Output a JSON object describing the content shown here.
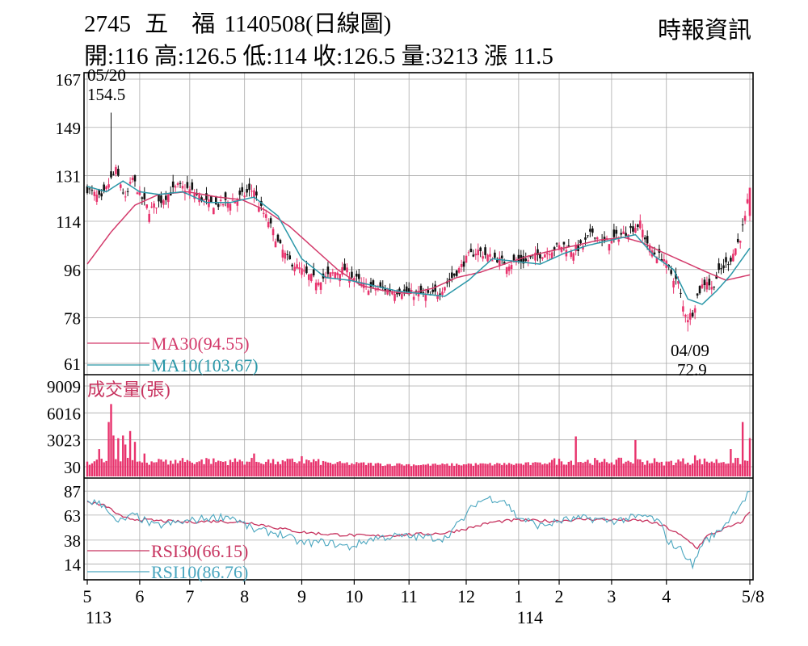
{
  "header": {
    "code": "2745",
    "name": "五　福",
    "date": "1140508(日線圖)",
    "source": "時報資訊",
    "quote": {
      "open_label": "開:",
      "open": "116",
      "high_label": "高:",
      "high": "126.5",
      "low_label": "低:",
      "low": "114",
      "close_label": "收:",
      "close": "126.5",
      "volume_label": "量:",
      "volume": "3213",
      "change_label": "漲",
      "change": "11.5"
    }
  },
  "colors": {
    "up": "#e8336d",
    "down": "#111111",
    "ma30": "#d33a6b",
    "ma10": "#2a97a8",
    "volume": "#e8336d",
    "rsi30": "#c7335f",
    "rsi10": "#4aa6bf",
    "grid": "#aaaaaa"
  },
  "chart_data": [
    {
      "type": "candlestick",
      "panel": "price",
      "y_ticks": [
        "167",
        "149",
        "131",
        "114",
        "96",
        "78",
        "61"
      ],
      "ylim": [
        61,
        167
      ],
      "annotations": [
        {
          "date": "05/20",
          "value": "154.5",
          "kind": "high"
        },
        {
          "date": "04/09",
          "value": "72.9",
          "kind": "low"
        }
      ],
      "legend": [
        {
          "label": "MA30(94.55)",
          "color": "#d33a6b"
        },
        {
          "label": "MA10(103.67)",
          "color": "#2a97a8"
        }
      ],
      "x_ticks": [
        "5",
        "6",
        "7",
        "8",
        "9",
        "10",
        "11",
        "12",
        "1",
        "2",
        "3",
        "4",
        "5/8"
      ],
      "x_year_labels": [
        {
          "label": "113",
          "at": "5"
        },
        {
          "label": "114",
          "at": "1"
        }
      ],
      "ma30_anchors": [
        [
          0,
          98
        ],
        [
          10,
          110
        ],
        [
          20,
          120
        ],
        [
          30,
          124
        ],
        [
          42,
          125
        ],
        [
          55,
          123
        ],
        [
          65,
          122
        ],
        [
          75,
          118
        ],
        [
          85,
          112
        ],
        [
          95,
          104
        ],
        [
          105,
          96
        ],
        [
          115,
          90
        ],
        [
          125,
          88
        ],
        [
          135,
          87
        ],
        [
          145,
          89
        ],
        [
          155,
          93
        ],
        [
          165,
          95
        ],
        [
          175,
          98
        ],
        [
          185,
          101
        ],
        [
          200,
          104
        ],
        [
          215,
          107
        ],
        [
          225,
          108
        ],
        [
          233,
          106
        ],
        [
          240,
          103
        ],
        [
          250,
          99
        ],
        [
          260,
          95
        ],
        [
          268,
          92
        ],
        [
          278,
          94
        ]
      ],
      "ma10_anchors": [
        [
          0,
          127
        ],
        [
          8,
          125
        ],
        [
          15,
          129
        ],
        [
          22,
          125
        ],
        [
          30,
          124
        ],
        [
          40,
          125
        ],
        [
          50,
          121
        ],
        [
          60,
          121
        ],
        [
          70,
          123
        ],
        [
          80,
          116
        ],
        [
          90,
          100
        ],
        [
          100,
          93
        ],
        [
          110,
          92
        ],
        [
          120,
          90
        ],
        [
          130,
          88
        ],
        [
          140,
          87
        ],
        [
          150,
          86
        ],
        [
          160,
          92
        ],
        [
          170,
          100
        ],
        [
          180,
          99
        ],
        [
          190,
          98
        ],
        [
          200,
          102
        ],
        [
          210,
          105
        ],
        [
          220,
          107
        ],
        [
          230,
          109
        ],
        [
          238,
          101
        ],
        [
          246,
          96
        ],
        [
          252,
          85
        ],
        [
          258,
          83
        ],
        [
          264,
          88
        ],
        [
          270,
          94
        ],
        [
          278,
          104
        ]
      ],
      "close_anchors": [
        [
          0,
          126
        ],
        [
          3,
          124
        ],
        [
          6,
          122
        ],
        [
          9,
          128
        ],
        [
          12,
          133
        ],
        [
          14,
          128
        ],
        [
          16,
          122
        ],
        [
          19,
          130
        ],
        [
          22,
          124
        ],
        [
          26,
          118
        ],
        [
          30,
          121
        ],
        [
          34,
          124
        ],
        [
          38,
          127
        ],
        [
          42,
          126
        ],
        [
          46,
          124
        ],
        [
          50,
          121
        ],
        [
          54,
          120
        ],
        [
          58,
          121
        ],
        [
          62,
          122
        ],
        [
          66,
          124
        ],
        [
          70,
          126
        ],
        [
          72,
          120
        ],
        [
          76,
          114
        ],
        [
          80,
          106
        ],
        [
          84,
          100
        ],
        [
          88,
          97
        ],
        [
          92,
          94
        ],
        [
          96,
          92
        ],
        [
          100,
          93
        ],
        [
          104,
          95
        ],
        [
          108,
          96
        ],
        [
          112,
          93
        ],
        [
          116,
          90
        ],
        [
          120,
          89
        ],
        [
          124,
          89
        ],
        [
          128,
          88
        ],
        [
          132,
          88
        ],
        [
          136,
          87
        ],
        [
          140,
          87
        ],
        [
          144,
          86
        ],
        [
          148,
          88
        ],
        [
          152,
          92
        ],
        [
          156,
          96
        ],
        [
          160,
          101
        ],
        [
          164,
          103
        ],
        [
          168,
          101
        ],
        [
          172,
          100
        ],
        [
          176,
          98
        ],
        [
          180,
          99
        ],
        [
          184,
          99
        ],
        [
          188,
          101
        ],
        [
          192,
          102
        ],
        [
          196,
          104
        ],
        [
          200,
          105
        ],
        [
          204,
          103
        ],
        [
          208,
          105
        ],
        [
          212,
          110
        ],
        [
          216,
          106
        ],
        [
          220,
          107
        ],
        [
          224,
          109
        ],
        [
          228,
          111
        ],
        [
          232,
          113
        ],
        [
          234,
          108
        ],
        [
          236,
          104
        ],
        [
          238,
          102
        ],
        [
          240,
          101
        ],
        [
          242,
          100
        ],
        [
          244,
          96
        ],
        [
          246,
          93
        ],
        [
          248,
          91
        ],
        [
          250,
          82
        ],
        [
          252,
          78
        ],
        [
          254,
          80
        ],
        [
          256,
          86
        ],
        [
          258,
          90
        ],
        [
          260,
          92
        ],
        [
          262,
          89
        ],
        [
          264,
          93
        ],
        [
          266,
          96
        ],
        [
          268,
          98
        ],
        [
          270,
          100
        ],
        [
          272,
          104
        ],
        [
          274,
          108
        ],
        [
          276,
          115
        ],
        [
          278,
          126.5
        ]
      ],
      "close": 126.5
    },
    {
      "type": "bar",
      "panel": "volume",
      "title": "成交量(張)",
      "y_ticks": [
        "9009",
        "6016",
        "3023",
        "30"
      ],
      "ylim": [
        30,
        9009
      ],
      "peaks": [
        [
          0,
          600
        ],
        [
          5,
          2000
        ],
        [
          9,
          5000
        ],
        [
          10,
          7000
        ],
        [
          11,
          3500
        ],
        [
          13,
          3200
        ],
        [
          15,
          3500
        ],
        [
          16,
          2500
        ],
        [
          18,
          4000
        ],
        [
          20,
          2800
        ],
        [
          24,
          1500
        ],
        [
          30,
          900
        ],
        [
          35,
          700
        ],
        [
          40,
          1000
        ],
        [
          50,
          1000
        ],
        [
          60,
          800
        ],
        [
          70,
          1500
        ],
        [
          80,
          600
        ],
        [
          90,
          1200
        ],
        [
          100,
          600
        ],
        [
          115,
          500
        ],
        [
          130,
          400
        ],
        [
          145,
          350
        ],
        [
          160,
          400
        ],
        [
          175,
          450
        ],
        [
          190,
          500
        ],
        [
          205,
          3400
        ],
        [
          215,
          500
        ],
        [
          230,
          3000
        ],
        [
          240,
          500
        ],
        [
          255,
          1300
        ],
        [
          270,
          2000
        ],
        [
          275,
          5000
        ],
        [
          278,
          3213
        ]
      ]
    },
    {
      "type": "line",
      "panel": "rsi",
      "y_ticks": [
        "87",
        "63",
        "38",
        "14"
      ],
      "ylim": [
        8,
        92
      ],
      "legend": [
        {
          "label": "RSI30(66.15)",
          "color": "#c7335f"
        },
        {
          "label": "RSI10(86.76)",
          "color": "#4aa6bf"
        }
      ],
      "rsi30_anchors": [
        [
          0,
          76
        ],
        [
          8,
          72
        ],
        [
          15,
          60
        ],
        [
          25,
          58
        ],
        [
          40,
          56
        ],
        [
          55,
          57
        ],
        [
          70,
          55
        ],
        [
          80,
          50
        ],
        [
          90,
          46
        ],
        [
          100,
          44
        ],
        [
          110,
          43
        ],
        [
          120,
          42
        ],
        [
          130,
          43
        ],
        [
          140,
          44
        ],
        [
          150,
          45
        ],
        [
          160,
          50
        ],
        [
          170,
          56
        ],
        [
          180,
          58
        ],
        [
          195,
          57
        ],
        [
          210,
          59
        ],
        [
          225,
          58
        ],
        [
          235,
          57
        ],
        [
          242,
          52
        ],
        [
          248,
          44
        ],
        [
          253,
          36
        ],
        [
          256,
          30
        ],
        [
          260,
          42
        ],
        [
          268,
          50
        ],
        [
          274,
          55
        ],
        [
          278,
          66.15
        ]
      ],
      "rsi10_anchors": [
        [
          0,
          78
        ],
        [
          8,
          72
        ],
        [
          12,
          55
        ],
        [
          20,
          63
        ],
        [
          28,
          52
        ],
        [
          40,
          56
        ],
        [
          50,
          60
        ],
        [
          60,
          62
        ],
        [
          70,
          48
        ],
        [
          80,
          45
        ],
        [
          90,
          35
        ],
        [
          100,
          36
        ],
        [
          110,
          31
        ],
        [
          120,
          40
        ],
        [
          130,
          42
        ],
        [
          140,
          41
        ],
        [
          150,
          40
        ],
        [
          158,
          60
        ],
        [
          163,
          75
        ],
        [
          168,
          80
        ],
        [
          175,
          78
        ],
        [
          180,
          62
        ],
        [
          190,
          52
        ],
        [
          200,
          58
        ],
        [
          210,
          60
        ],
        [
          220,
          57
        ],
        [
          228,
          60
        ],
        [
          235,
          62
        ],
        [
          240,
          56
        ],
        [
          244,
          36
        ],
        [
          250,
          27
        ],
        [
          254,
          12
        ],
        [
          258,
          35
        ],
        [
          264,
          45
        ],
        [
          268,
          55
        ],
        [
          272,
          68
        ],
        [
          276,
          80
        ],
        [
          278,
          86.76
        ]
      ]
    }
  ]
}
